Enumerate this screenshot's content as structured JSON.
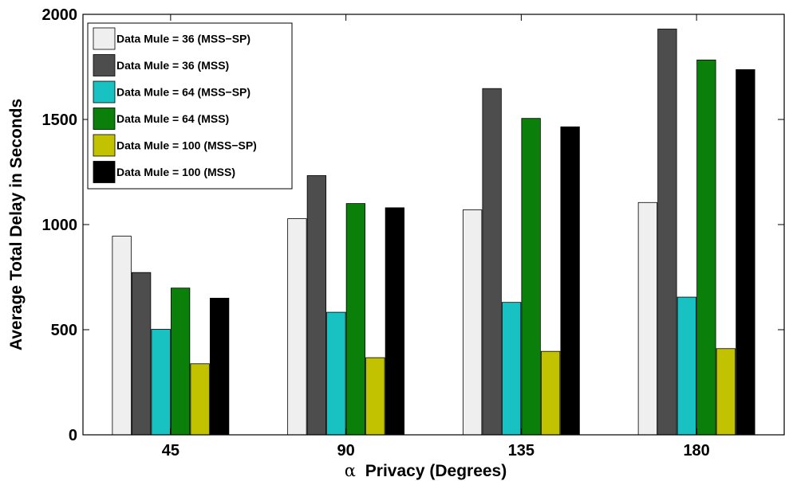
{
  "chart_data": {
    "type": "bar",
    "title": "",
    "xlabel": "Privacy (Degrees)",
    "xlabel_symbol": "α",
    "ylabel": "Average Total Delay in Seconds",
    "categories": [
      "45",
      "90",
      "135",
      "180"
    ],
    "ylim": [
      0,
      2000
    ],
    "yticks": [
      0,
      500,
      1000,
      1500,
      2000
    ],
    "grid": false,
    "legend_position": "top-left",
    "series": [
      {
        "name": "Data Mule = 36 (MSS−SP)",
        "color": "#efefef",
        "values": [
          945,
          1028,
          1070,
          1105
        ]
      },
      {
        "name": "Data Mule = 36 (MSS)",
        "color": "#4d4d4d",
        "values": [
          772,
          1233,
          1647,
          1930
        ]
      },
      {
        "name": "Data Mule = 64 (MSS−SP)",
        "color": "#19c2c2",
        "values": [
          502,
          583,
          630,
          655
        ]
      },
      {
        "name": "Data Mule = 64 (MSS)",
        "color": "#0a800a",
        "values": [
          698,
          1100,
          1505,
          1783
        ]
      },
      {
        "name": "Data Mule = 100 (MSS−SP)",
        "color": "#c2c200",
        "values": [
          338,
          367,
          397,
          410
        ]
      },
      {
        "name": "Data Mule = 100 (MSS)",
        "color": "#000000",
        "values": [
          650,
          1080,
          1465,
          1737
        ]
      }
    ]
  }
}
